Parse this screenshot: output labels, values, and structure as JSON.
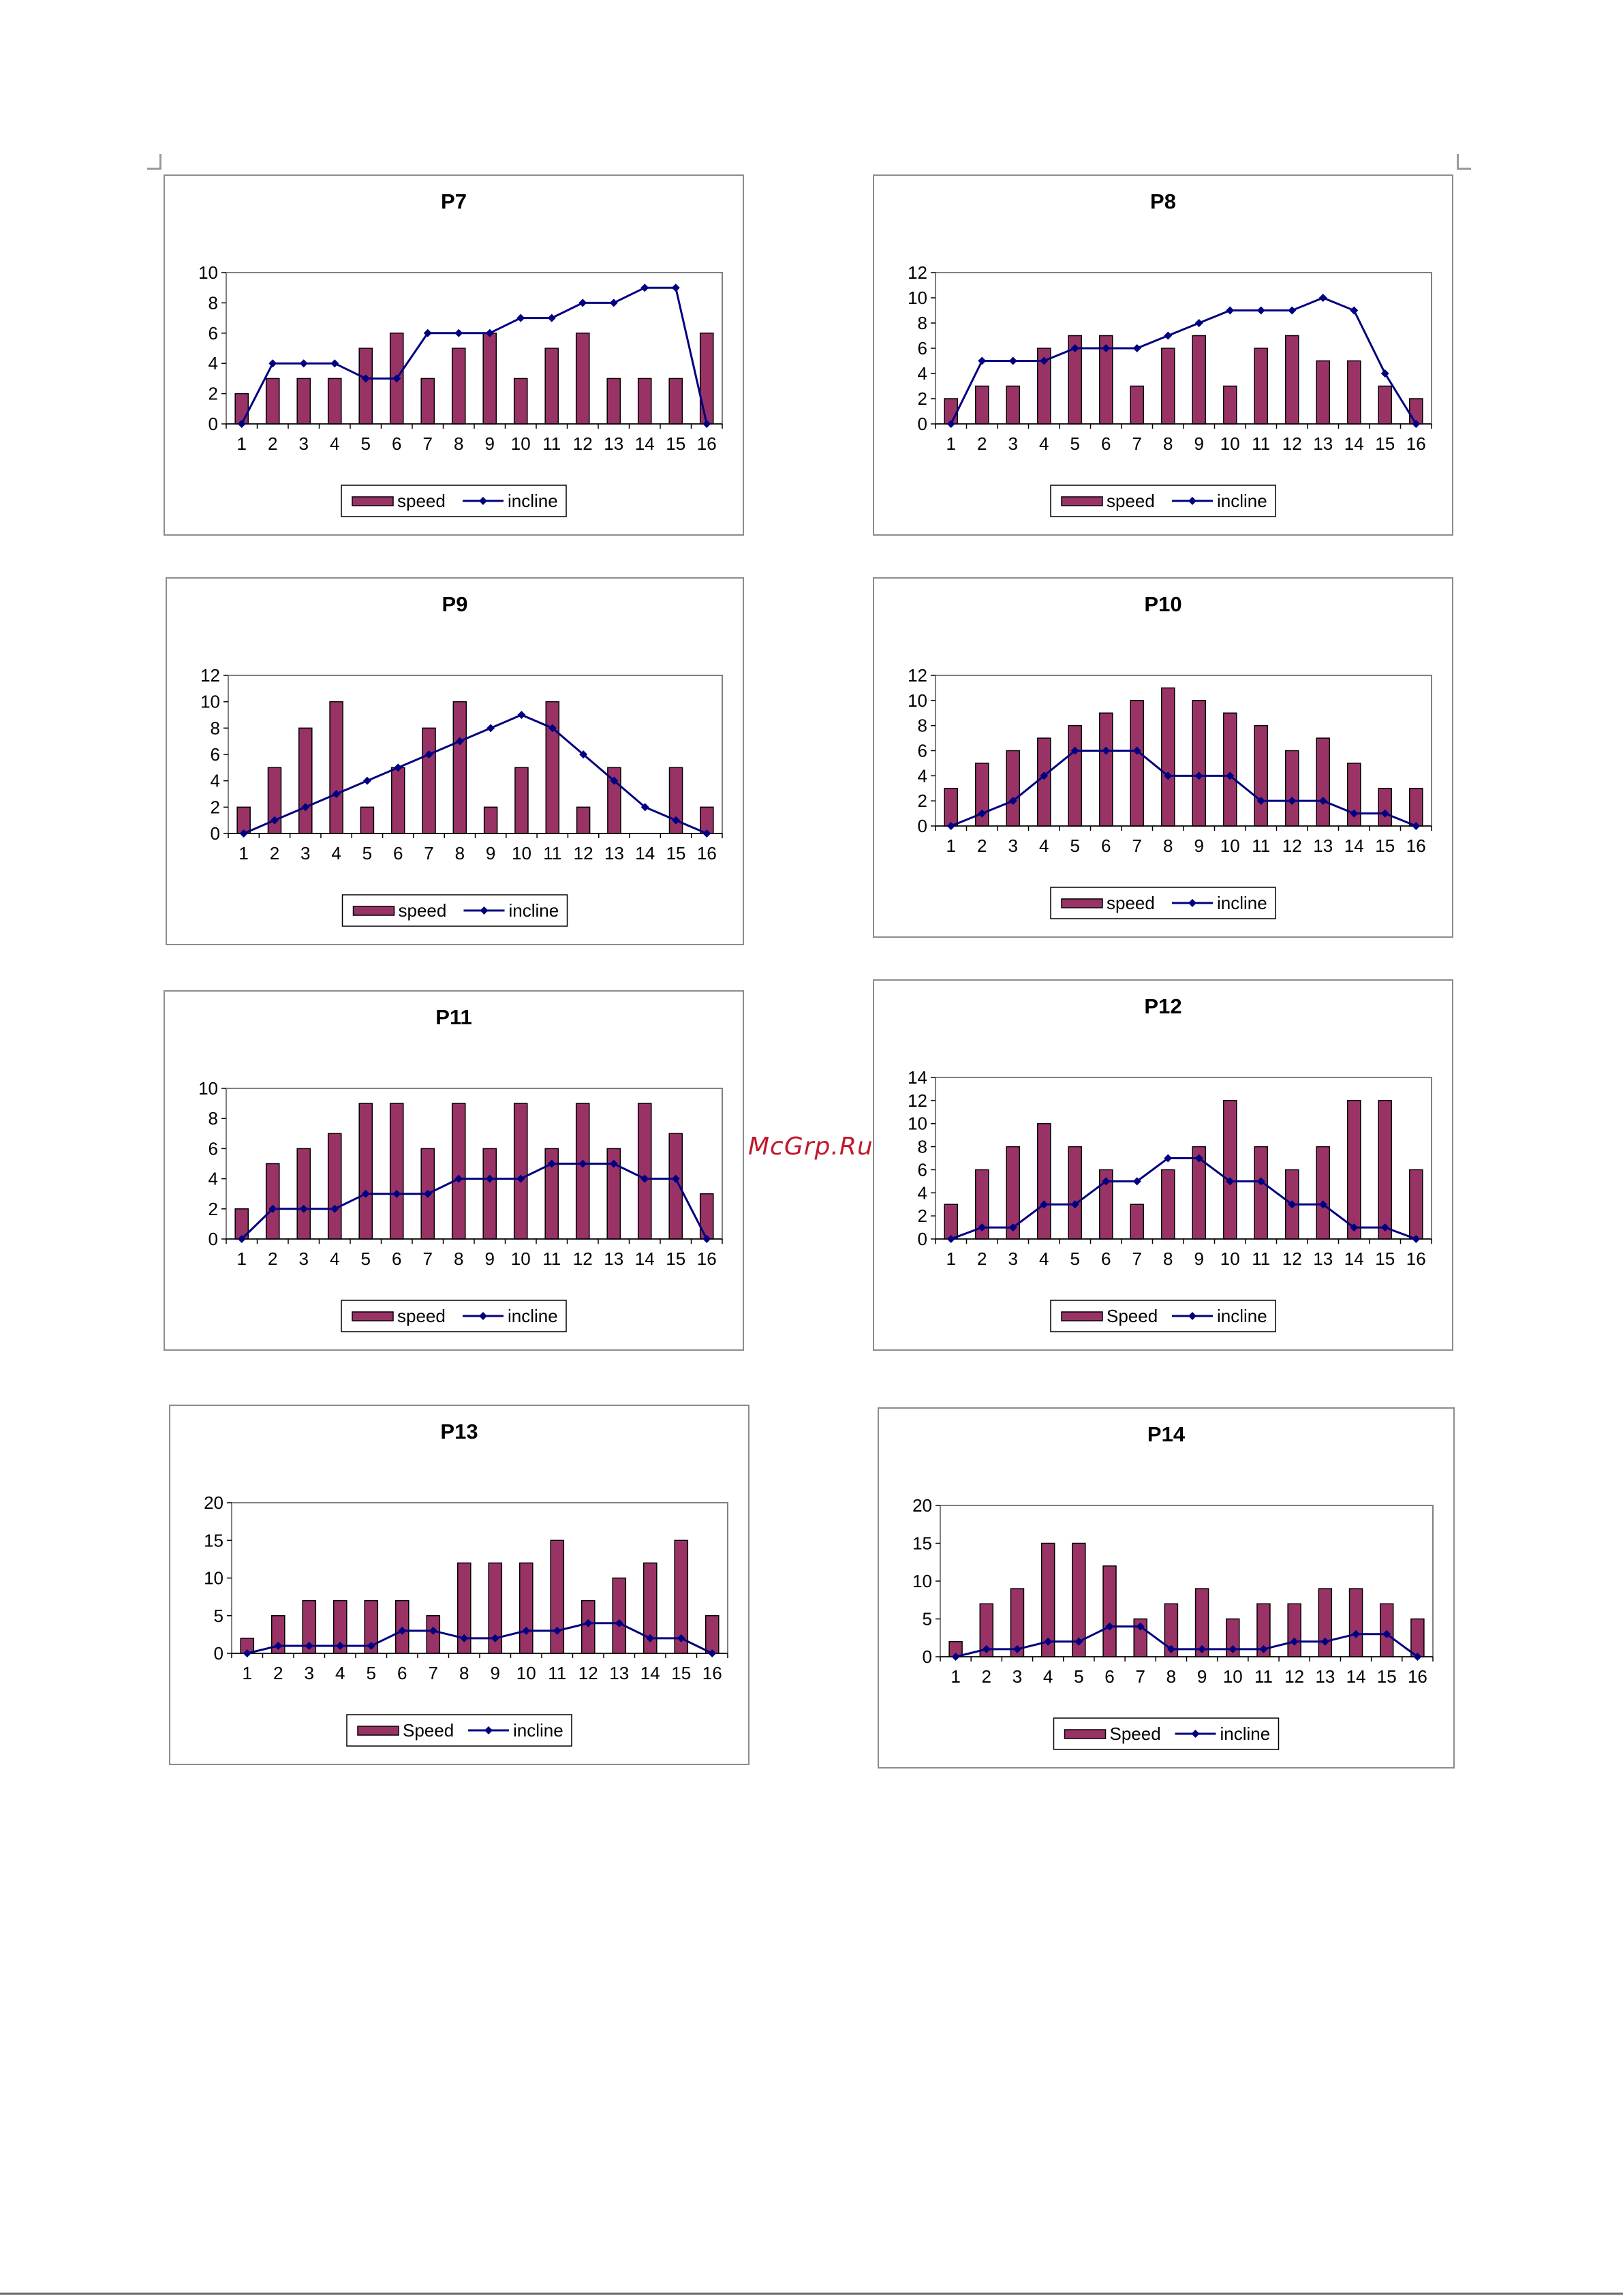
{
  "watermark": "McGrp.Ru",
  "colors": {
    "bar": "#993366",
    "bar_stroke": "#000000",
    "line": "#000080",
    "frame": "#8c8c8c",
    "watermark": "#c0192c"
  },
  "icons": {
    "legend_bar": "bar-swatch-icon",
    "legend_line": "line-marker-icon"
  },
  "chart_data": [
    {
      "type": "bar",
      "title": "P7",
      "categories": [
        "1",
        "2",
        "3",
        "4",
        "5",
        "6",
        "7",
        "8",
        "9",
        "10",
        "11",
        "12",
        "13",
        "14",
        "15",
        "16"
      ],
      "ylim": [
        0,
        10
      ],
      "yticks": [
        0,
        2,
        4,
        6,
        8,
        10
      ],
      "series": [
        {
          "name": "speed",
          "kind": "bar",
          "values": [
            2,
            3,
            3,
            3,
            5,
            6,
            3,
            5,
            6,
            3,
            5,
            6,
            3,
            3,
            3,
            6
          ]
        },
        {
          "name": "incline",
          "kind": "line",
          "values": [
            0,
            4,
            4,
            4,
            3,
            3,
            6,
            6,
            6,
            7,
            7,
            8,
            8,
            9,
            9,
            0
          ]
        }
      ],
      "legend": "bottom"
    },
    {
      "type": "bar",
      "title": "P8",
      "categories": [
        "1",
        "2",
        "3",
        "4",
        "5",
        "6",
        "7",
        "8",
        "9",
        "10",
        "11",
        "12",
        "13",
        "14",
        "15",
        "16"
      ],
      "ylim": [
        0,
        12
      ],
      "yticks": [
        0,
        2,
        4,
        6,
        8,
        10,
        12
      ],
      "series": [
        {
          "name": "speed",
          "kind": "bar",
          "values": [
            2,
            3,
            3,
            6,
            7,
            7,
            3,
            6,
            7,
            3,
            6,
            7,
            5,
            5,
            3,
            2
          ]
        },
        {
          "name": "incline",
          "kind": "line",
          "values": [
            0,
            5,
            5,
            5,
            6,
            6,
            6,
            7,
            8,
            9,
            9,
            9,
            10,
            9,
            4,
            0
          ]
        }
      ],
      "legend": "bottom"
    },
    {
      "type": "bar",
      "title": "P9",
      "categories": [
        "1",
        "2",
        "3",
        "4",
        "5",
        "6",
        "7",
        "8",
        "9",
        "10",
        "11",
        "12",
        "13",
        "14",
        "15",
        "16"
      ],
      "ylim": [
        0,
        12
      ],
      "yticks": [
        0,
        2,
        4,
        6,
        8,
        10,
        12
      ],
      "series": [
        {
          "name": "speed",
          "kind": "bar",
          "values": [
            2,
            5,
            8,
            10,
            2,
            5,
            8,
            10,
            2,
            5,
            10,
            2,
            5,
            0,
            5,
            2
          ]
        },
        {
          "name": "incline",
          "kind": "line",
          "values": [
            0,
            1,
            2,
            3,
            4,
            5,
            6,
            7,
            8,
            9,
            8,
            6,
            4,
            2,
            1,
            0
          ]
        }
      ],
      "legend": "bottom"
    },
    {
      "type": "bar",
      "title": "P10",
      "categories": [
        "1",
        "2",
        "3",
        "4",
        "5",
        "6",
        "7",
        "8",
        "9",
        "10",
        "11",
        "12",
        "13",
        "14",
        "15",
        "16"
      ],
      "ylim": [
        0,
        12
      ],
      "yticks": [
        0,
        2,
        4,
        6,
        8,
        10,
        12
      ],
      "series": [
        {
          "name": "speed",
          "kind": "bar",
          "values": [
            3,
            5,
            6,
            7,
            8,
            9,
            10,
            11,
            10,
            9,
            8,
            6,
            7,
            5,
            3,
            3
          ]
        },
        {
          "name": "incline",
          "kind": "line",
          "values": [
            0,
            1,
            2,
            4,
            6,
            6,
            6,
            4,
            4,
            4,
            2,
            2,
            2,
            1,
            1,
            0
          ]
        }
      ],
      "legend": "bottom"
    },
    {
      "type": "bar",
      "title": "P11",
      "categories": [
        "1",
        "2",
        "3",
        "4",
        "5",
        "6",
        "7",
        "8",
        "9",
        "10",
        "11",
        "12",
        "13",
        "14",
        "15",
        "16"
      ],
      "ylim": [
        0,
        10
      ],
      "yticks": [
        0,
        2,
        4,
        6,
        8,
        10
      ],
      "series": [
        {
          "name": "speed",
          "kind": "bar",
          "values": [
            2,
            5,
            6,
            7,
            9,
            9,
            6,
            9,
            6,
            9,
            6,
            9,
            6,
            9,
            7,
            3
          ]
        },
        {
          "name": "incline",
          "kind": "line",
          "values": [
            0,
            2,
            2,
            2,
            3,
            3,
            3,
            4,
            4,
            4,
            5,
            5,
            5,
            4,
            4,
            0
          ]
        }
      ],
      "legend": "bottom"
    },
    {
      "type": "bar",
      "title": "P12",
      "categories": [
        "1",
        "2",
        "3",
        "4",
        "5",
        "6",
        "7",
        "8",
        "9",
        "10",
        "11",
        "12",
        "13",
        "14",
        "15",
        "16"
      ],
      "ylim": [
        0,
        14
      ],
      "yticks": [
        0,
        2,
        4,
        6,
        8,
        10,
        12,
        14
      ],
      "series": [
        {
          "name": "Speed",
          "kind": "bar",
          "values": [
            3,
            6,
            8,
            10,
            8,
            6,
            3,
            6,
            8,
            12,
            8,
            6,
            8,
            12,
            12,
            6
          ]
        },
        {
          "name": "incline",
          "kind": "line",
          "values": [
            0,
            1,
            1,
            3,
            3,
            5,
            5,
            7,
            7,
            5,
            5,
            3,
            3,
            1,
            1,
            0
          ]
        }
      ],
      "legend": "bottom"
    },
    {
      "type": "bar",
      "title": "P13",
      "categories": [
        "1",
        "2",
        "3",
        "4",
        "5",
        "6",
        "7",
        "8",
        "9",
        "10",
        "11",
        "12",
        "13",
        "14",
        "15",
        "16"
      ],
      "ylim": [
        0,
        20
      ],
      "yticks": [
        0,
        5,
        10,
        15,
        20
      ],
      "series": [
        {
          "name": "Speed",
          "kind": "bar",
          "values": [
            2,
            5,
            7,
            7,
            7,
            7,
            5,
            12,
            12,
            12,
            15,
            7,
            10,
            12,
            15,
            5
          ]
        },
        {
          "name": "incline",
          "kind": "line",
          "values": [
            0,
            1,
            1,
            1,
            1,
            3,
            3,
            2,
            2,
            3,
            3,
            4,
            4,
            2,
            2,
            0
          ]
        }
      ],
      "legend": "bottom"
    },
    {
      "type": "bar",
      "title": "P14",
      "categories": [
        "1",
        "2",
        "3",
        "4",
        "5",
        "6",
        "7",
        "8",
        "9",
        "10",
        "11",
        "12",
        "13",
        "14",
        "15",
        "16"
      ],
      "ylim": [
        0,
        20
      ],
      "yticks": [
        0,
        5,
        10,
        15,
        20
      ],
      "series": [
        {
          "name": "Speed",
          "kind": "bar",
          "values": [
            2,
            7,
            9,
            15,
            15,
            12,
            5,
            7,
            9,
            5,
            7,
            7,
            9,
            9,
            7,
            5
          ]
        },
        {
          "name": "incline",
          "kind": "line",
          "values": [
            0,
            1,
            1,
            2,
            2,
            4,
            4,
            1,
            1,
            1,
            1,
            2,
            2,
            3,
            3,
            0
          ]
        }
      ],
      "legend": "bottom"
    }
  ]
}
